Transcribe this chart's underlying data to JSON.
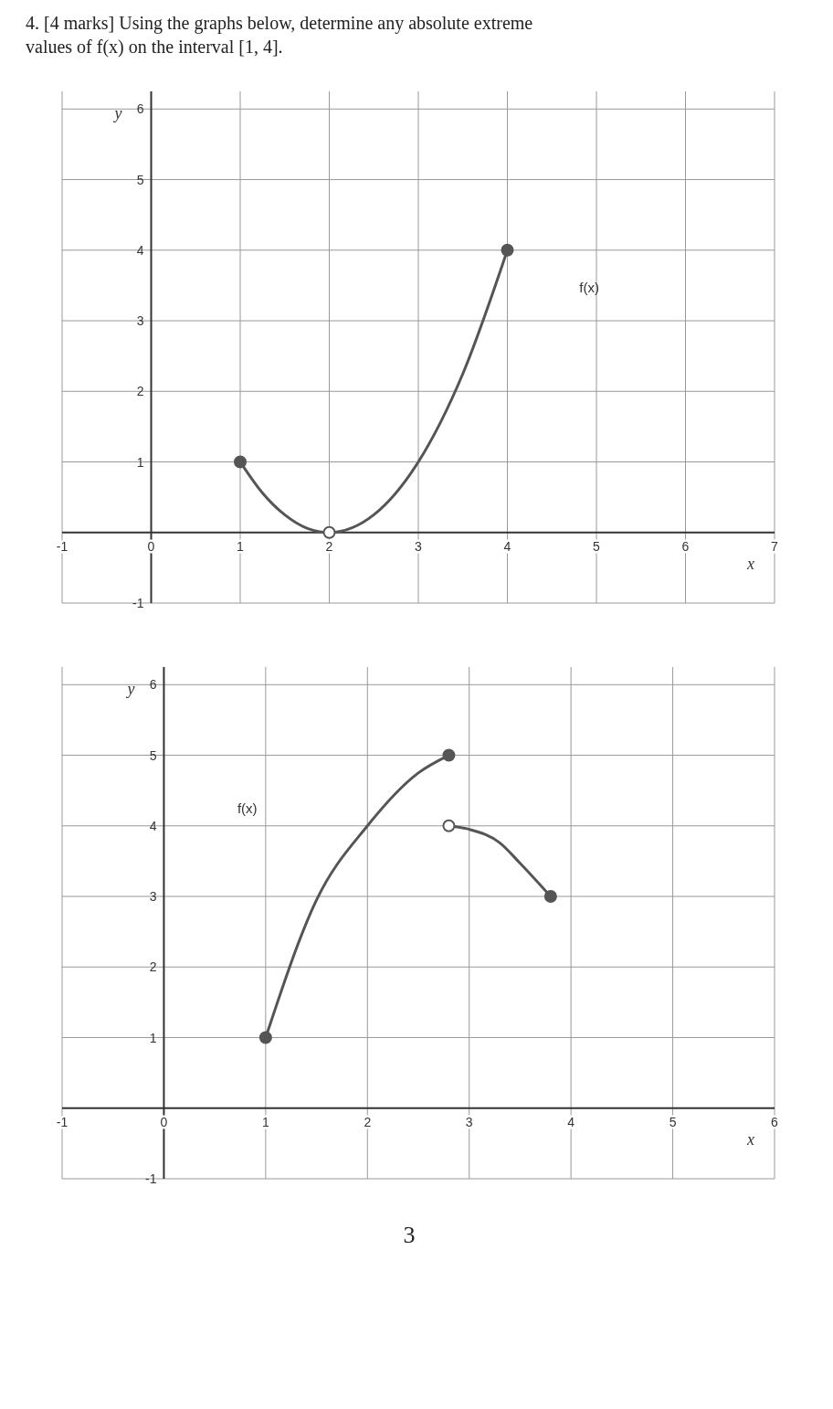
{
  "chart_data": [
    {
      "type": "line",
      "title": "4. [4 marks] Using the graphs below, determine any absolute extreme values of f(x) on the interval [1, 4].",
      "xlabel": "x",
      "ylabel": "y",
      "xlim": [
        -1,
        7
      ],
      "ylim": [
        -1,
        6.25
      ],
      "xticks": [
        -1,
        0,
        1,
        2,
        3,
        4,
        5,
        6,
        7
      ],
      "yticks": [
        -1,
        1,
        2,
        3,
        4,
        5,
        6
      ],
      "grid": true,
      "annotations": [
        "f(x)"
      ],
      "series": [
        {
          "color": "#555555",
          "marker": "none",
          "x": [
            1,
            1.25,
            1.5,
            1.75,
            2,
            2.5,
            3,
            3.5,
            4
          ],
          "values": [
            1,
            0.56,
            0.25,
            0.06,
            0,
            0.25,
            1,
            2.25,
            4
          ]
        },
        {
          "type": "scatter",
          "color": "#555555",
          "marker": "circle",
          "x": [
            1,
            4
          ],
          "values": [
            1,
            4
          ]
        },
        {
          "type": "scatter",
          "color": "#ffffff",
          "marker": "circle",
          "x": [
            2
          ],
          "values": [
            0
          ]
        }
      ]
    },
    {
      "type": "line",
      "xlabel": "x",
      "ylabel": "y",
      "xlim": [
        -1,
        6
      ],
      "ylim": [
        -1,
        6.25
      ],
      "xticks": [
        -1,
        0,
        1,
        2,
        3,
        4,
        5,
        6
      ],
      "yticks": [
        -1,
        1,
        2,
        3,
        4,
        5,
        6
      ],
      "grid": true,
      "annotations": [
        "f(x)",
        "3"
      ],
      "series": [
        {
          "color": "#555555",
          "marker": "none",
          "x": [
            1,
            1.5,
            2,
            2.5,
            2.8
          ],
          "values": [
            1,
            2.95,
            4,
            4.75,
            5
          ]
        },
        {
          "color": "#555555",
          "marker": "none",
          "x": [
            2.8,
            3,
            3.3,
            3.5,
            3.8
          ],
          "values": [
            4,
            3.95,
            3.76,
            3.47,
            3
          ]
        },
        {
          "type": "scatter",
          "color": "#555555",
          "marker": "circle",
          "x": [
            1,
            2.8,
            3.8
          ],
          "values": [
            1,
            5,
            3
          ]
        },
        {
          "type": "scatter",
          "color": "#ffffff",
          "marker": "circle",
          "x": [
            2.8
          ],
          "values": [
            4
          ]
        }
      ]
    }
  ]
}
